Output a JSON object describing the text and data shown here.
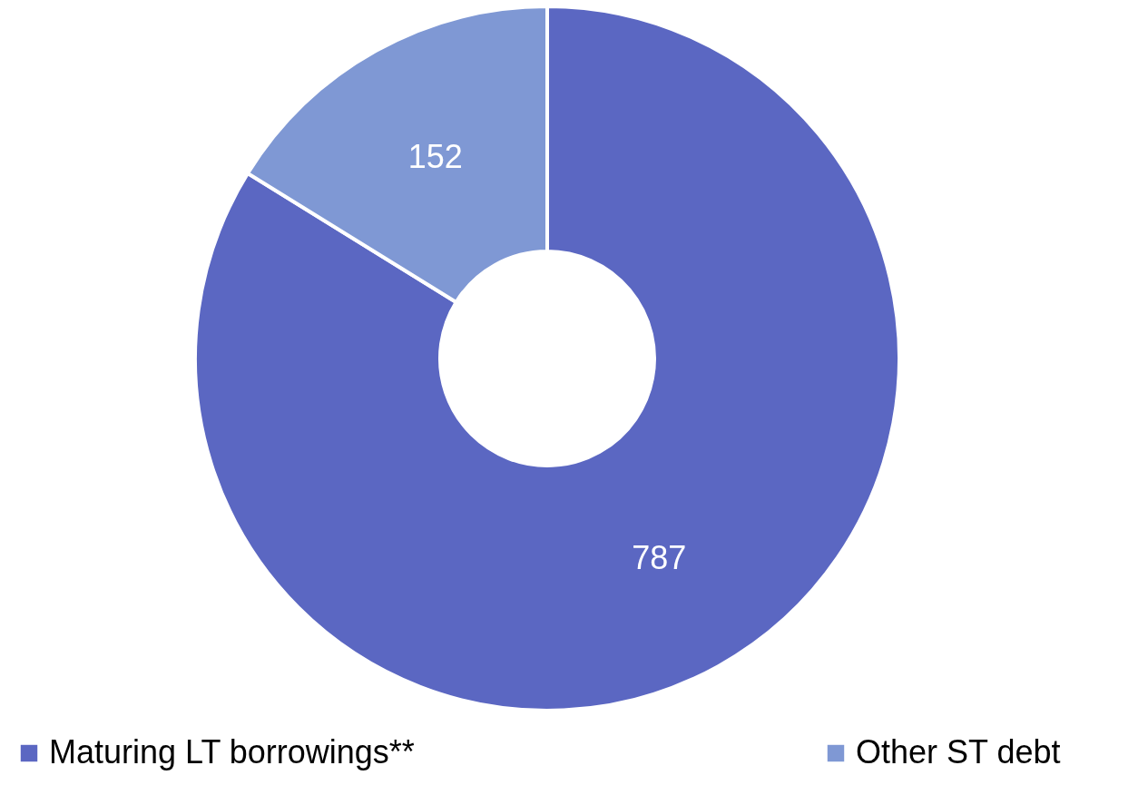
{
  "chart_data": {
    "type": "donut",
    "categories": [
      "Maturing LT borrowings**",
      "Other ST debt"
    ],
    "values": [
      787,
      152
    ],
    "colors": [
      "#5b67c2",
      "#7f98d4"
    ],
    "data_labels": true,
    "legend": "bottom"
  }
}
